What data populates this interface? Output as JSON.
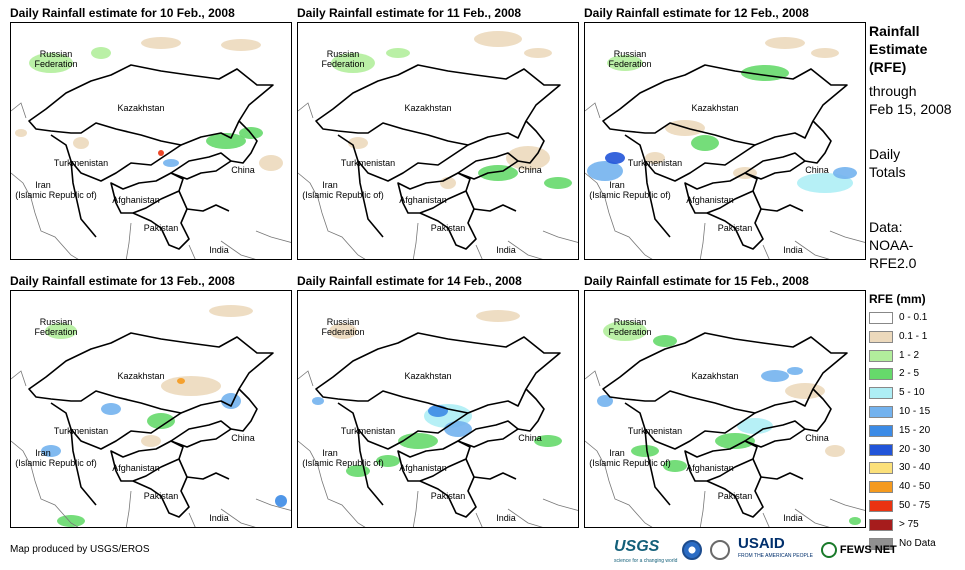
{
  "panels": [
    {
      "title": "Daily Rainfall estimate for 10 Feb., 2008"
    },
    {
      "title": "Daily Rainfall estimate for 11 Feb., 2008"
    },
    {
      "title": "Daily Rainfall estimate for 12 Feb., 2008"
    },
    {
      "title": "Daily Rainfall estimate for 13 Feb., 2008"
    },
    {
      "title": "Daily Rainfall estimate for 14 Feb., 2008"
    },
    {
      "title": "Daily Rainfall estimate for 15 Feb., 2008"
    }
  ],
  "map_labels": {
    "russia_1": "Russian",
    "russia_2": "Federation",
    "kazakhstan": "Kazakhstan",
    "turkmenistan": "Turkmenistan",
    "iran_1": "Iran",
    "iran_2": "(Islamic Republic of)",
    "afghanistan": "Afghanistan",
    "pakistan": "Pakistan",
    "india": "India",
    "china": "China"
  },
  "side": {
    "title_1": "Rainfall",
    "title_2": "Estimate",
    "title_3": "(RFE)",
    "through": "through",
    "date": "Feb 15, 2008",
    "daily": "Daily",
    "totals": "Totals",
    "data_1": "Data:",
    "data_2": "NOAA-",
    "data_3": "RFE2.0"
  },
  "legend": {
    "title": "RFE (mm)",
    "items": [
      {
        "label": "0 - 0.1",
        "color": "#ffffff"
      },
      {
        "label": "0.1 - 1",
        "color": "#ecd9bc"
      },
      {
        "label": "1 - 2",
        "color": "#b2ee9c"
      },
      {
        "label": "2 - 5",
        "color": "#66d96b"
      },
      {
        "label": "5 - 10",
        "color": "#aeeef5"
      },
      {
        "label": "10 - 15",
        "color": "#73b2ee"
      },
      {
        "label": "15 - 20",
        "color": "#3c8be6"
      },
      {
        "label": "20 - 30",
        "color": "#2154d8"
      },
      {
        "label": "30 - 40",
        "color": "#fbe07a"
      },
      {
        "label": "40 - 50",
        "color": "#f59a1e"
      },
      {
        "label": "50 - 75",
        "color": "#ea3311"
      },
      {
        "label": "> 75",
        "color": "#a61c1c"
      },
      {
        "label": "No Data",
        "color": "#909090"
      }
    ]
  },
  "credit": "Map produced by USGS/EROS",
  "logos": {
    "usgs": "USGS",
    "usgs_tagline": "science for a changing world",
    "usaid": "USAID",
    "usaid_tagline": "FROM THE AMERICAN PEOPLE",
    "fews": "FEWS NET"
  }
}
